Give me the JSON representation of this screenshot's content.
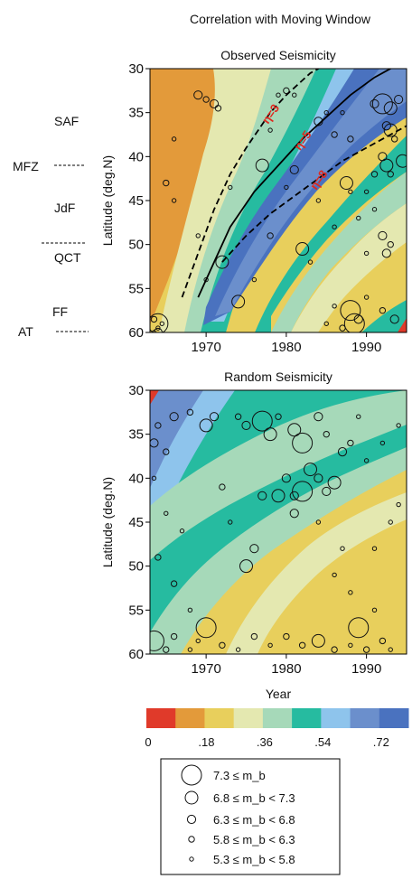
{
  "figure_title": "Correlation with Moving Window",
  "fault_labels": [
    "SAF",
    "MFZ",
    "JdF",
    "QCT",
    "FF",
    "AT"
  ],
  "colorbar": {
    "tick_labels": [
      "0",
      ".18",
      ".36",
      ".54",
      ".72"
    ],
    "colors": [
      "#e03a2a",
      "#e39a3a",
      "#e8cf5c",
      "#e4e8b0",
      "#a6d9b9",
      "#26bba0",
      "#8ec4ec",
      "#6b8fcc",
      "#4a72bf"
    ]
  },
  "legend": {
    "entries": [
      {
        "label": "7.3 ≤ m_b"
      },
      {
        "label": "6.8 ≤ m_b < 7.3"
      },
      {
        "label": "6.3 ≤ m_b < 6.8"
      },
      {
        "label": "5.8 ≤ m_b < 6.3"
      },
      {
        "label": "5.3 ≤ m_b < 5.8"
      }
    ]
  },
  "chart_data": [
    {
      "type": "heatmap",
      "title": "Observed Seismicity",
      "xlabel": "",
      "ylabel": "Latitude (deg.N)",
      "xlim": [
        1963,
        1995
      ],
      "ylim": [
        60,
        30
      ],
      "xticks": [
        "1970",
        "1980",
        "1990"
      ],
      "yticks": [
        "30",
        "35",
        "40",
        "45",
        "50",
        "55",
        "60"
      ],
      "curves": [
        {
          "label": "η=3",
          "style": "dashed",
          "x": [
            1967,
            1969,
            1971,
            1973,
            1975,
            1978,
            1980,
            1983,
            1985,
            1988
          ],
          "y": [
            56,
            51,
            46,
            42,
            39,
            35,
            33,
            30.5,
            29.5,
            28.5
          ]
        },
        {
          "label": "η=5",
          "style": "solid",
          "x": [
            1969,
            1971,
            1973,
            1976,
            1979,
            1982,
            1985,
            1988,
            1991,
            1994
          ],
          "y": [
            56,
            52,
            48,
            44,
            41,
            38,
            35.5,
            33,
            31,
            29.5
          ]
        },
        {
          "label": "η=8",
          "style": "dashed",
          "x": [
            1972,
            1975,
            1978,
            1981,
            1984,
            1987,
            1990,
            1993,
            1995
          ],
          "y": [
            52,
            49,
            46.5,
            44.5,
            42.5,
            40.5,
            39,
            37.5,
            36.5
          ]
        }
      ],
      "events": [
        {
          "x": 1964,
          "y": 59,
          "s": 5
        },
        {
          "x": 1964,
          "y": 60,
          "s": 3
        },
        {
          "x": 1963.5,
          "y": 58.5,
          "s": 2
        },
        {
          "x": 1964,
          "y": 59.5,
          "s": 1
        },
        {
          "x": 1963.5,
          "y": 60,
          "s": 1
        },
        {
          "x": 1964.5,
          "y": 59,
          "s": 1
        },
        {
          "x": 1969,
          "y": 33,
          "s": 3
        },
        {
          "x": 1970,
          "y": 33.5,
          "s": 2
        },
        {
          "x": 1971,
          "y": 34,
          "s": 3
        },
        {
          "x": 1971.5,
          "y": 34.5,
          "s": 2
        },
        {
          "x": 1966,
          "y": 38,
          "s": 1
        },
        {
          "x": 1965,
          "y": 43,
          "s": 2
        },
        {
          "x": 1966,
          "y": 45,
          "s": 1
        },
        {
          "x": 1969,
          "y": 49,
          "s": 1
        },
        {
          "x": 1970,
          "y": 54,
          "s": 1
        },
        {
          "x": 1972,
          "y": 52,
          "s": 4
        },
        {
          "x": 1973,
          "y": 43.5,
          "s": 1
        },
        {
          "x": 1974,
          "y": 56.5,
          "s": 4
        },
        {
          "x": 1977,
          "y": 41,
          "s": 4
        },
        {
          "x": 1978,
          "y": 37,
          "s": 1
        },
        {
          "x": 1979,
          "y": 33,
          "s": 1
        },
        {
          "x": 1980,
          "y": 32.5,
          "s": 2
        },
        {
          "x": 1981,
          "y": 33,
          "s": 1
        },
        {
          "x": 1981,
          "y": 41.5,
          "s": 3
        },
        {
          "x": 1980,
          "y": 43.5,
          "s": 1
        },
        {
          "x": 1978,
          "y": 49,
          "s": 2
        },
        {
          "x": 1982,
          "y": 50.5,
          "s": 4
        },
        {
          "x": 1983,
          "y": 52,
          "s": 1
        },
        {
          "x": 1984,
          "y": 36,
          "s": 3
        },
        {
          "x": 1985,
          "y": 35,
          "s": 1
        },
        {
          "x": 1986,
          "y": 37.5,
          "s": 2
        },
        {
          "x": 1987,
          "y": 35,
          "s": 1
        },
        {
          "x": 1988,
          "y": 38,
          "s": 2
        },
        {
          "x": 1988,
          "y": 44,
          "s": 1
        },
        {
          "x": 1987.5,
          "y": 43,
          "s": 4
        },
        {
          "x": 1988,
          "y": 57.5,
          "s": 5
        },
        {
          "x": 1988.5,
          "y": 59,
          "s": 5
        },
        {
          "x": 1989,
          "y": 58.5,
          "s": 3
        },
        {
          "x": 1987,
          "y": 59.5,
          "s": 2
        },
        {
          "x": 1985,
          "y": 59,
          "s": 1
        },
        {
          "x": 1986,
          "y": 57,
          "s": 1
        },
        {
          "x": 1990,
          "y": 56,
          "s": 1
        },
        {
          "x": 1991,
          "y": 34,
          "s": 3
        },
        {
          "x": 1992,
          "y": 34,
          "s": 5
        },
        {
          "x": 1993,
          "y": 34.5,
          "s": 4
        },
        {
          "x": 1994,
          "y": 33.5,
          "s": 3
        },
        {
          "x": 1992.5,
          "y": 36.5,
          "s": 3
        },
        {
          "x": 1993,
          "y": 37,
          "s": 4
        },
        {
          "x": 1993.5,
          "y": 38,
          "s": 2
        },
        {
          "x": 1992,
          "y": 40,
          "s": 3
        },
        {
          "x": 1992.5,
          "y": 41,
          "s": 4
        },
        {
          "x": 1993,
          "y": 42,
          "s": 2
        },
        {
          "x": 1994.5,
          "y": 40.5,
          "s": 4
        },
        {
          "x": 1991,
          "y": 42,
          "s": 2
        },
        {
          "x": 1990,
          "y": 44,
          "s": 1
        },
        {
          "x": 1991,
          "y": 46,
          "s": 1
        },
        {
          "x": 1992,
          "y": 49,
          "s": 3
        },
        {
          "x": 1992.5,
          "y": 51,
          "s": 3
        },
        {
          "x": 1993,
          "y": 50,
          "s": 2
        },
        {
          "x": 1990,
          "y": 51,
          "s": 1
        },
        {
          "x": 1992,
          "y": 57.5,
          "s": 2
        },
        {
          "x": 1993.5,
          "y": 58.5,
          "s": 3
        },
        {
          "x": 1989,
          "y": 47,
          "s": 1
        },
        {
          "x": 1986,
          "y": 48,
          "s": 1
        },
        {
          "x": 1984,
          "y": 45,
          "s": 1
        },
        {
          "x": 1976,
          "y": 54,
          "s": 1
        }
      ]
    },
    {
      "type": "heatmap",
      "title": "Random Seismicity",
      "xlabel": "Year",
      "ylabel": "Latitude (deg.N)",
      "xlim": [
        1963,
        1995
      ],
      "ylim": [
        60,
        30
      ],
      "xticks": [
        "1970",
        "1980",
        "1990"
      ],
      "yticks": [
        "30",
        "35",
        "40",
        "45",
        "50",
        "55",
        "60"
      ],
      "events": [
        {
          "x": 1963.5,
          "y": 36,
          "s": 3
        },
        {
          "x": 1964,
          "y": 34,
          "s": 2
        },
        {
          "x": 1965,
          "y": 37,
          "s": 2
        },
        {
          "x": 1966,
          "y": 33,
          "s": 3
        },
        {
          "x": 1968,
          "y": 32.5,
          "s": 2
        },
        {
          "x": 1970,
          "y": 34,
          "s": 4
        },
        {
          "x": 1971,
          "y": 33,
          "s": 3
        },
        {
          "x": 1974,
          "y": 33,
          "s": 2
        },
        {
          "x": 1975,
          "y": 34,
          "s": 3
        },
        {
          "x": 1977,
          "y": 33.5,
          "s": 5
        },
        {
          "x": 1978,
          "y": 35,
          "s": 4
        },
        {
          "x": 1979,
          "y": 33,
          "s": 2
        },
        {
          "x": 1981,
          "y": 34.5,
          "s": 4
        },
        {
          "x": 1982,
          "y": 36,
          "s": 5
        },
        {
          "x": 1984,
          "y": 33,
          "s": 3
        },
        {
          "x": 1985,
          "y": 35,
          "s": 2
        },
        {
          "x": 1987,
          "y": 37,
          "s": 3
        },
        {
          "x": 1988,
          "y": 36,
          "s": 2
        },
        {
          "x": 1963.5,
          "y": 40,
          "s": 1
        },
        {
          "x": 1965,
          "y": 44,
          "s": 1
        },
        {
          "x": 1967,
          "y": 46,
          "s": 1
        },
        {
          "x": 1964,
          "y": 49,
          "s": 2
        },
        {
          "x": 1966,
          "y": 52,
          "s": 2
        },
        {
          "x": 1968,
          "y": 55,
          "s": 1
        },
        {
          "x": 1972,
          "y": 41,
          "s": 2
        },
        {
          "x": 1973,
          "y": 45,
          "s": 1
        },
        {
          "x": 1975,
          "y": 50,
          "s": 4
        },
        {
          "x": 1976,
          "y": 48,
          "s": 3
        },
        {
          "x": 1977,
          "y": 42,
          "s": 3
        },
        {
          "x": 1979,
          "y": 42,
          "s": 4
        },
        {
          "x": 1980,
          "y": 40,
          "s": 3
        },
        {
          "x": 1981,
          "y": 42,
          "s": 3
        },
        {
          "x": 1982,
          "y": 41.5,
          "s": 5
        },
        {
          "x": 1983,
          "y": 39,
          "s": 4
        },
        {
          "x": 1984,
          "y": 40,
          "s": 3
        },
        {
          "x": 1985,
          "y": 41.5,
          "s": 3
        },
        {
          "x": 1986,
          "y": 40.5,
          "s": 4
        },
        {
          "x": 1981,
          "y": 44,
          "s": 3
        },
        {
          "x": 1984,
          "y": 45,
          "s": 1
        },
        {
          "x": 1987,
          "y": 48,
          "s": 1
        },
        {
          "x": 1986,
          "y": 51,
          "s": 1
        },
        {
          "x": 1988,
          "y": 53,
          "s": 1
        },
        {
          "x": 1963.5,
          "y": 58.5,
          "s": 5
        },
        {
          "x": 1965,
          "y": 59.5,
          "s": 2
        },
        {
          "x": 1966,
          "y": 58,
          "s": 2
        },
        {
          "x": 1968,
          "y": 59.5,
          "s": 1
        },
        {
          "x": 1969,
          "y": 58.5,
          "s": 1
        },
        {
          "x": 1970,
          "y": 57,
          "s": 5
        },
        {
          "x": 1972,
          "y": 59,
          "s": 2
        },
        {
          "x": 1974,
          "y": 59.5,
          "s": 1
        },
        {
          "x": 1976,
          "y": 58,
          "s": 2
        },
        {
          "x": 1978,
          "y": 59,
          "s": 1
        },
        {
          "x": 1980,
          "y": 58,
          "s": 2
        },
        {
          "x": 1982,
          "y": 59,
          "s": 2
        },
        {
          "x": 1984,
          "y": 58.5,
          "s": 4
        },
        {
          "x": 1986,
          "y": 59.5,
          "s": 2
        },
        {
          "x": 1988,
          "y": 59,
          "s": 1
        },
        {
          "x": 1989,
          "y": 57,
          "s": 5
        },
        {
          "x": 1990,
          "y": 59.5,
          "s": 2
        },
        {
          "x": 1992,
          "y": 58.5,
          "s": 2
        },
        {
          "x": 1993,
          "y": 59.5,
          "s": 1
        },
        {
          "x": 1991,
          "y": 48,
          "s": 1
        },
        {
          "x": 1993,
          "y": 45,
          "s": 1
        },
        {
          "x": 1994,
          "y": 43,
          "s": 1
        },
        {
          "x": 1990,
          "y": 38,
          "s": 1
        },
        {
          "x": 1992,
          "y": 36,
          "s": 1
        },
        {
          "x": 1994,
          "y": 34,
          "s": 1
        },
        {
          "x": 1989,
          "y": 33,
          "s": 1
        },
        {
          "x": 1991,
          "y": 55,
          "s": 1
        }
      ]
    }
  ]
}
